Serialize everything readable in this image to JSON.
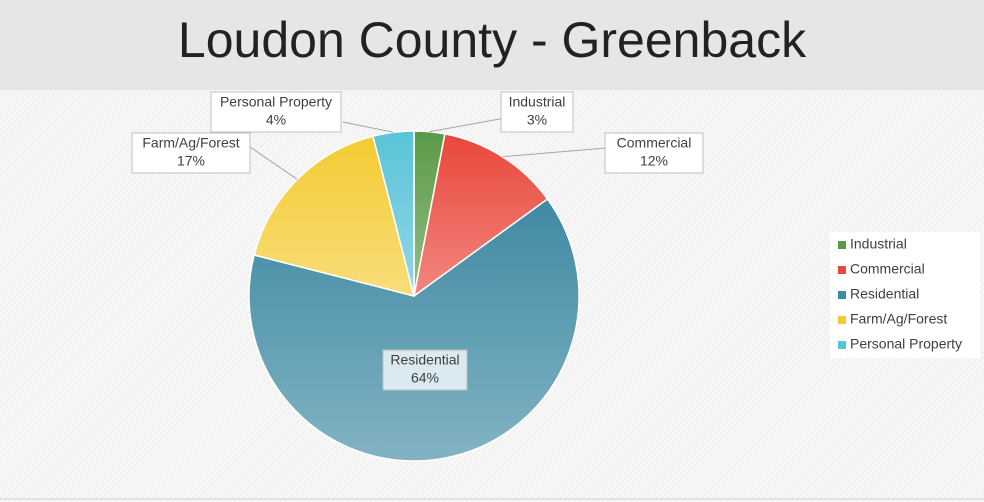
{
  "chart_data": {
    "type": "pie",
    "title": "Loudon County - Greenback",
    "categories": [
      "Industrial",
      "Commercial",
      "Residential",
      "Farm/Ag/Forest",
      "Personal Property"
    ],
    "values": [
      3,
      12,
      64,
      17,
      4
    ],
    "value_labels": [
      "3%",
      "12%",
      "64%",
      "17%",
      "4%"
    ],
    "colors": [
      "#5a9a47",
      "#e9473a",
      "#3f8aa3",
      "#f4cb33",
      "#59c3d7"
    ],
    "legend": "right"
  }
}
